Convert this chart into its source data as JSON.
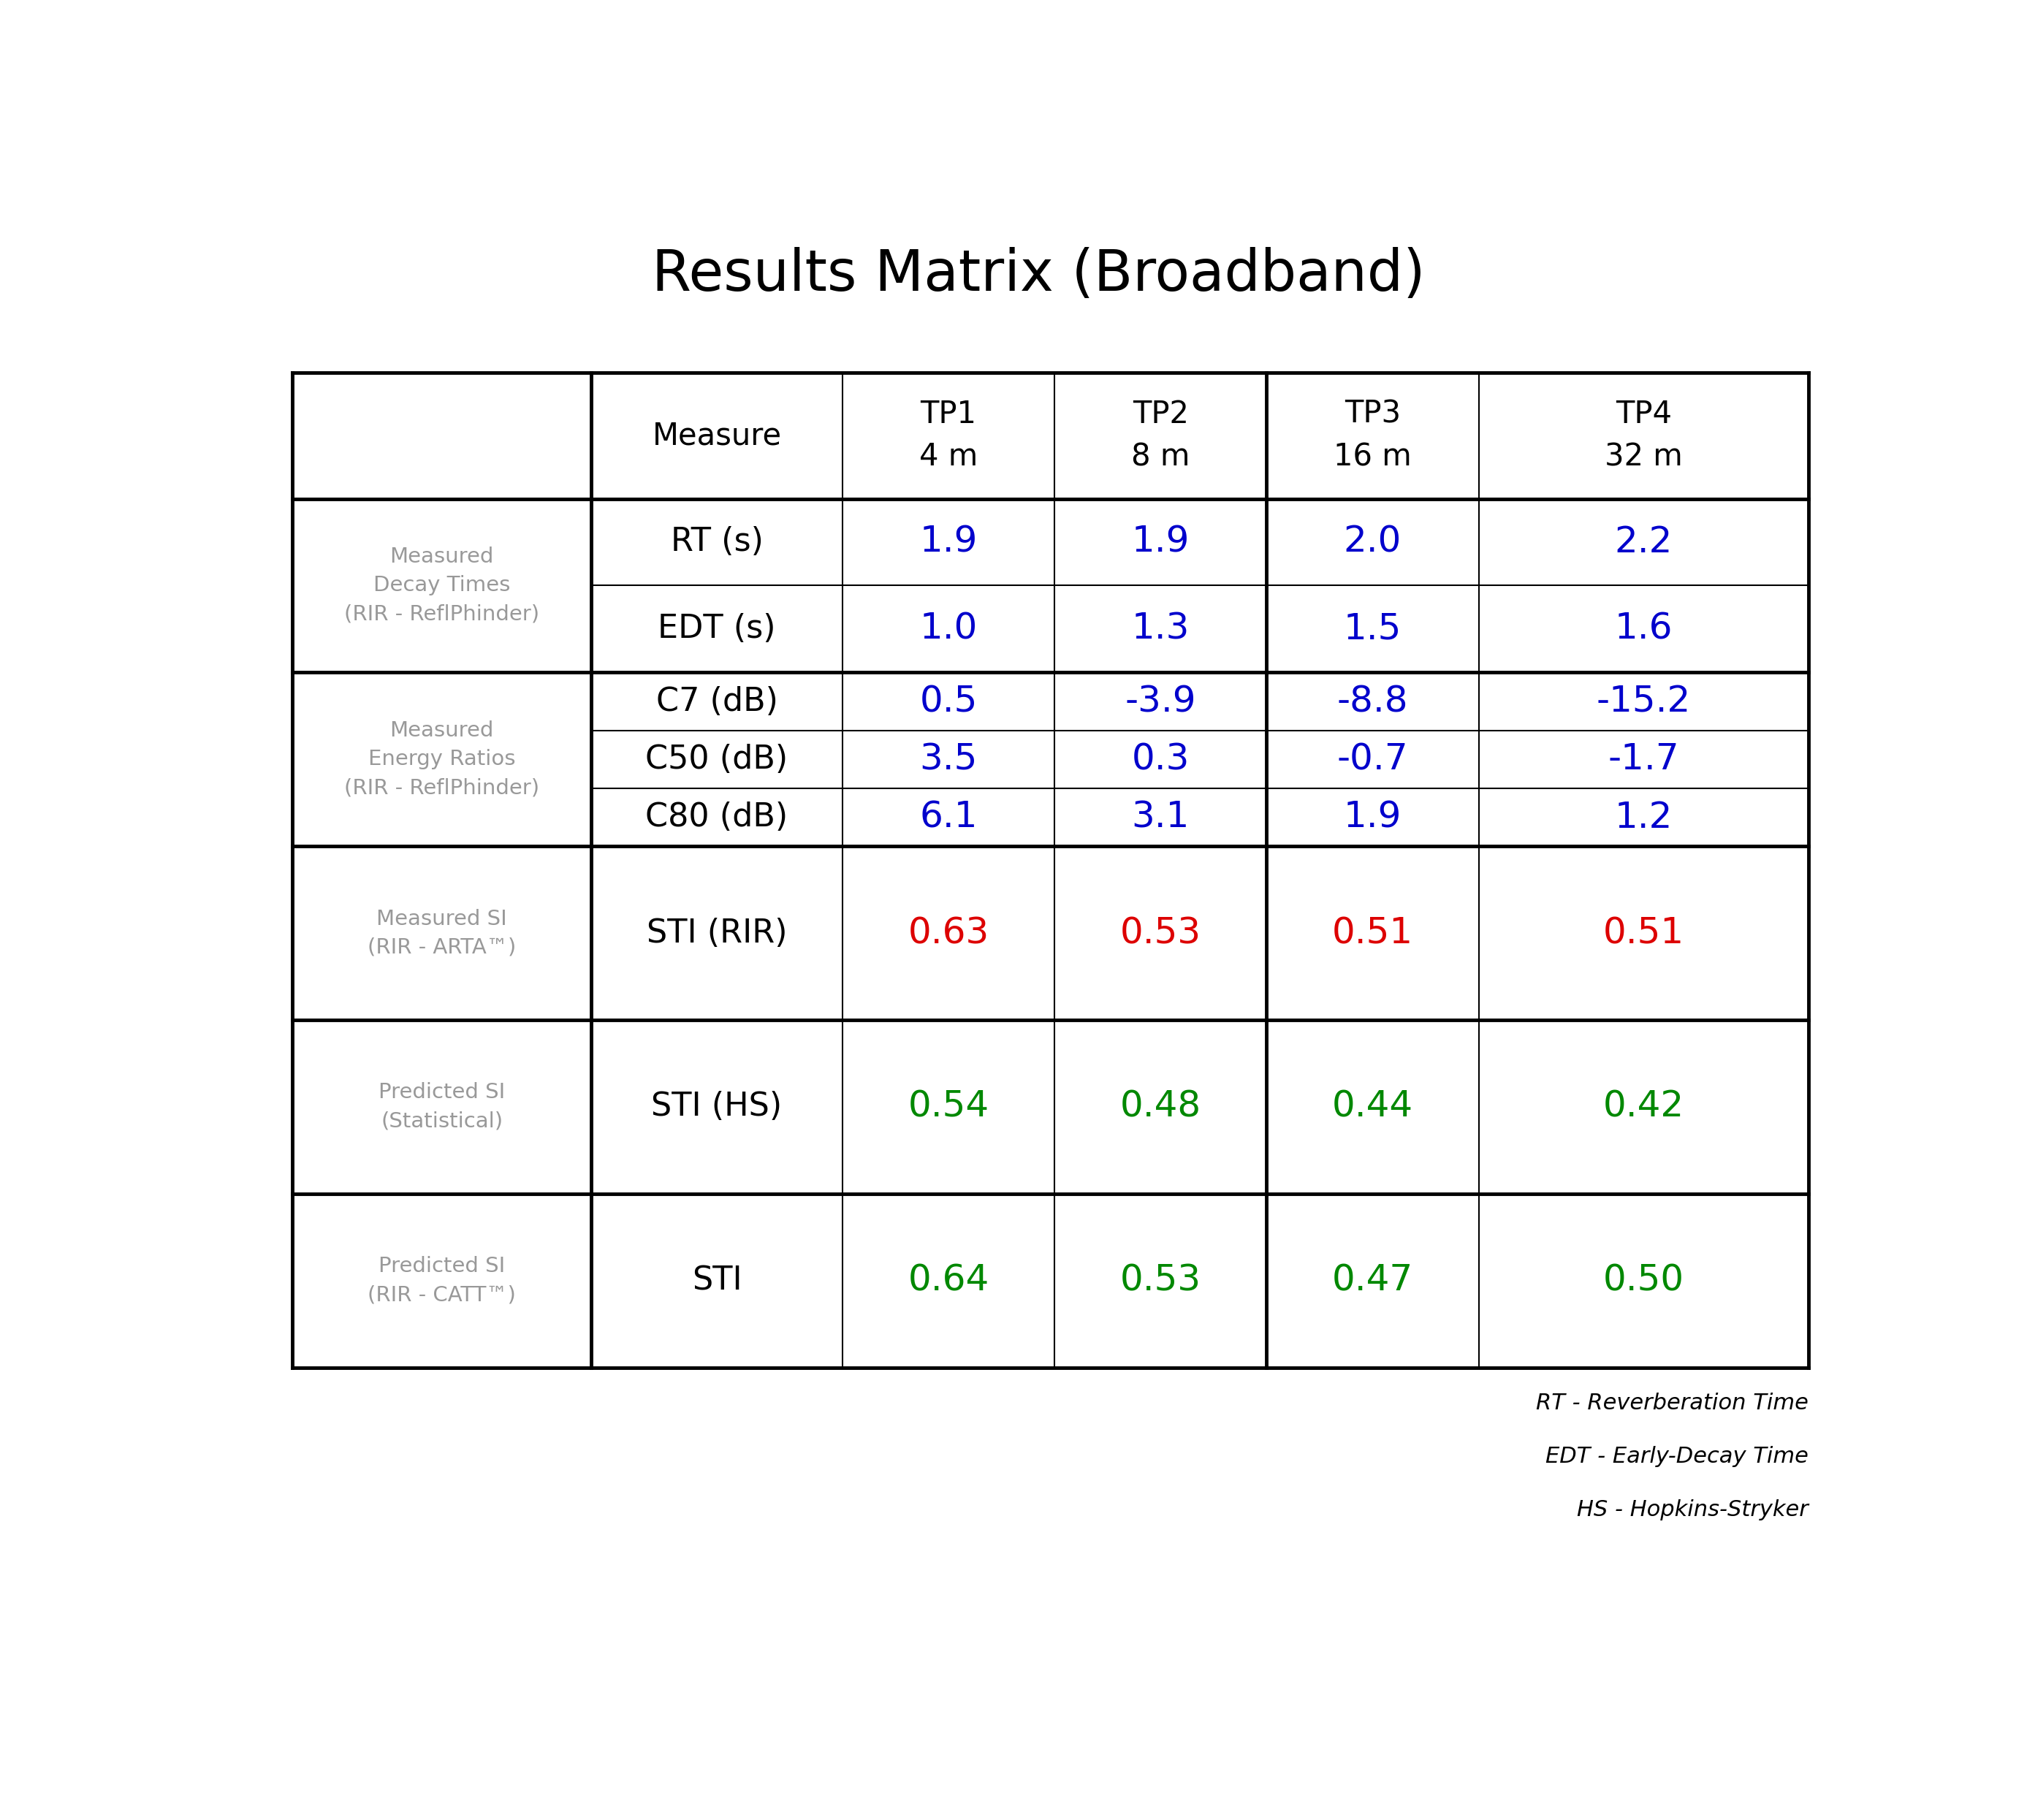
{
  "title": "Results Matrix (Broadband)",
  "title_fontsize": 56,
  "title_fontweight": "normal",
  "background_color": "#ffffff",
  "col_headers": [
    "Measure",
    "TP1\n4 m",
    "TP2\n8 m",
    "TP3\n16 m",
    "TP4\n32 m"
  ],
  "col_header_fontsize": 30,
  "row_groups": [
    {
      "label": "Measured\nDecay Times\n(RIR - ReflPhinder)",
      "label_color": "#999999",
      "label_fontsize": 21,
      "rows": [
        {
          "measure": "RT (s)",
          "measure_fontsize": 32,
          "measure_color": "#000000",
          "values": [
            "1.9",
            "1.9",
            "2.0",
            "2.2"
          ],
          "value_color": "#0000cc",
          "value_fontsize": 36
        },
        {
          "measure": "EDT (s)",
          "measure_fontsize": 32,
          "measure_color": "#000000",
          "values": [
            "1.0",
            "1.3",
            "1.5",
            "1.6"
          ],
          "value_color": "#0000cc",
          "value_fontsize": 36
        }
      ]
    },
    {
      "label": "Measured\nEnergy Ratios\n(RIR - ReflPhinder)",
      "label_color": "#999999",
      "label_fontsize": 21,
      "rows": [
        {
          "measure": "C7 (dB)",
          "measure_fontsize": 32,
          "measure_color": "#000000",
          "values": [
            "0.5",
            "-3.9",
            "-8.8",
            "-15.2"
          ],
          "value_color": "#0000cc",
          "value_fontsize": 36
        },
        {
          "measure": "C50 (dB)",
          "measure_fontsize": 32,
          "measure_color": "#000000",
          "values": [
            "3.5",
            "0.3",
            "-0.7",
            "-1.7"
          ],
          "value_color": "#0000cc",
          "value_fontsize": 36
        },
        {
          "measure": "C80 (dB)",
          "measure_fontsize": 32,
          "measure_color": "#000000",
          "values": [
            "6.1",
            "3.1",
            "1.9",
            "1.2"
          ],
          "value_color": "#0000cc",
          "value_fontsize": 36
        }
      ]
    },
    {
      "label": "Measured SI\n(RIR - ARTA™)",
      "label_color": "#999999",
      "label_fontsize": 21,
      "rows": [
        {
          "measure": "STI (RIR)",
          "measure_fontsize": 32,
          "measure_color": "#000000",
          "values": [
            "0.63",
            "0.53",
            "0.51",
            "0.51"
          ],
          "value_color": "#dd0000",
          "value_fontsize": 36
        }
      ]
    },
    {
      "label": "Predicted SI\n(Statistical)",
      "label_color": "#999999",
      "label_fontsize": 21,
      "rows": [
        {
          "measure": "STI (HS)",
          "measure_fontsize": 32,
          "measure_color": "#000000",
          "values": [
            "0.54",
            "0.48",
            "0.44",
            "0.42"
          ],
          "value_color": "#008800",
          "value_fontsize": 36
        }
      ]
    },
    {
      "label": "Predicted SI\n(RIR - CATT™)",
      "label_color": "#999999",
      "label_fontsize": 21,
      "rows": [
        {
          "measure": "STI",
          "measure_fontsize": 32,
          "measure_color": "#000000",
          "values": [
            "0.64",
            "0.53",
            "0.47",
            "0.50"
          ],
          "value_color": "#008800",
          "value_fontsize": 36
        }
      ]
    }
  ],
  "footnotes": [
    "RT - Reverberation Time",
    "EDT - Early-Decay Time",
    "HS - Hopkins-Stryker"
  ],
  "footnote_fontsize": 22,
  "footnote_color": "#000000",
  "group_heights": [
    2.0,
    2.0,
    2.0,
    2.0,
    2.0
  ]
}
